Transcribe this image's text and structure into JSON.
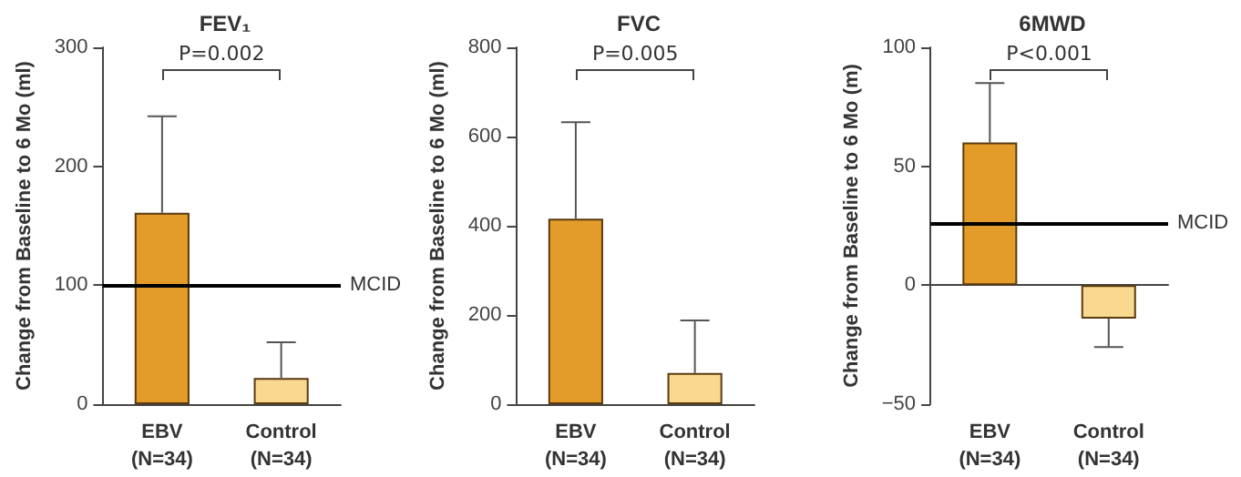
{
  "chart_data": [
    {
      "type": "bar",
      "title": "FEV₁",
      "ylabel": "Change from Baseline to 6 Mo (ml)",
      "categories": [
        "EBV\n(N=34)",
        "Control\n(N=34)"
      ],
      "values": [
        161,
        22
      ],
      "colors": [
        "#e39b2a",
        "#f8d98f"
      ],
      "errors": [
        [
          161,
          242
        ],
        [
          22,
          52
        ]
      ],
      "ylim": [
        0,
        300
      ],
      "yticks": [
        0,
        100,
        200,
        300
      ],
      "ref_lines": [
        {
          "axis": "y",
          "value": 100,
          "label": "MCID"
        }
      ],
      "annotations": [
        "P=0.002"
      ]
    },
    {
      "type": "bar",
      "title": "FVC",
      "ylabel": "Change from Baseline to 6 Mo (ml)",
      "categories": [
        "EBV\n(N=34)",
        "Control\n(N=34)"
      ],
      "values": [
        416,
        70
      ],
      "colors": [
        "#e39b2a",
        "#f8d98f"
      ],
      "errors": [
        [
          416,
          632
        ],
        [
          70,
          188
        ]
      ],
      "ylim": [
        0,
        800
      ],
      "yticks": [
        0,
        200,
        400,
        600,
        800
      ],
      "annotations": [
        "P=0.005"
      ]
    },
    {
      "type": "bar",
      "title": "6MWD",
      "ylabel": "Change from Baseline to 6 Mo (m)",
      "categories": [
        "EBV\n(N=34)",
        "Control\n(N=34)"
      ],
      "values": [
        60,
        -14
      ],
      "colors": [
        "#e39b2a",
        "#f8d98f"
      ],
      "errors": [
        [
          60,
          85
        ],
        [
          -26,
          -14
        ]
      ],
      "ylim": [
        -50,
        100
      ],
      "yticks": [
        -50,
        0,
        50,
        100
      ],
      "ref_lines": [
        {
          "axis": "y",
          "value": 26,
          "label": "MCID"
        }
      ],
      "annotations": [
        "P<0.001"
      ]
    }
  ]
}
